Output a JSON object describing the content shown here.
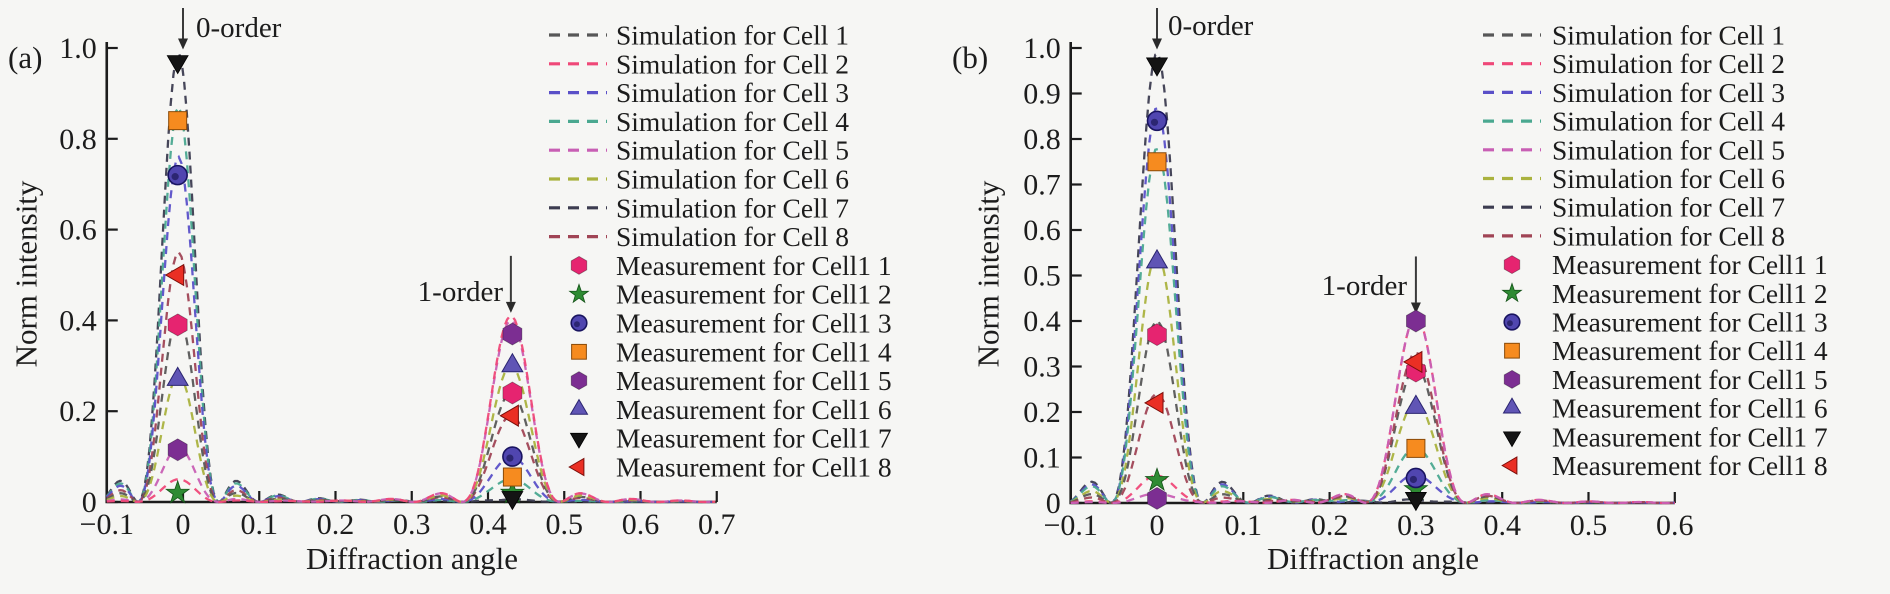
{
  "figure": {
    "background": "#f6f6f4",
    "text_color": "#1c1c1c",
    "axis_color": "#1c1c1c"
  },
  "chart_data": [
    {
      "panel_label": "(a)",
      "type": "line+scatter",
      "title": "",
      "xlabel": "Diffraction angle",
      "ylabel": "Norm intensity",
      "xlim": [
        -0.1,
        0.7
      ],
      "ylim": [
        0,
        1.0
      ],
      "xticks": [
        -0.1,
        0,
        0.1,
        0.2,
        0.3,
        0.4,
        0.5,
        0.6,
        0.7
      ],
      "xtick_labels": [
        "−0.1",
        "0",
        "0.1",
        "0.2",
        "0.3",
        "0.4",
        "0.5",
        "0.6",
        "0.7"
      ],
      "yticks": [
        0,
        0.2,
        0.4,
        0.6,
        0.8,
        1.0
      ],
      "ytick_labels": [
        "0",
        "0.2",
        "0.4",
        "0.6",
        "0.8",
        "1.0"
      ],
      "grid": false,
      "legend_position": "right",
      "zero_order_x": 0.0,
      "first_order_x": 0.43,
      "annotations": [
        {
          "text": "0-order",
          "x": 0.0
        },
        {
          "text": "1-order",
          "x": 0.43
        }
      ],
      "series": [
        {
          "name": "Simulation for Cell 1",
          "type": "line",
          "style": "dashed",
          "color": "#575757",
          "peak0": 0.41,
          "peak1": 0.24
        },
        {
          "name": "Simulation for Cell 2",
          "type": "line",
          "style": "dashed",
          "color": "#ef4878",
          "peak0": 0.05,
          "peak1": 0.41
        },
        {
          "name": "Simulation for Cell 3",
          "type": "line",
          "style": "dashed",
          "color": "#5a50c8",
          "peak0": 0.76,
          "peak1": 0.1
        },
        {
          "name": "Simulation for Cell 4",
          "type": "line",
          "style": "dashed",
          "color": "#4aa890",
          "peak0": 0.87,
          "peak1": 0.05
        },
        {
          "name": "Simulation for Cell 5",
          "type": "line",
          "style": "dashed",
          "color": "#c85fb4",
          "peak0": 0.12,
          "peak1": 0.4
        },
        {
          "name": "Simulation for Cell 6",
          "type": "line",
          "style": "dashed",
          "color": "#aab23e",
          "peak0": 0.28,
          "peak1": 0.3
        },
        {
          "name": "Simulation for Cell 7",
          "type": "line",
          "style": "dashed",
          "color": "#3c3c50",
          "peak0": 0.99,
          "peak1": 0.005
        },
        {
          "name": "Simulation for Cell 8",
          "type": "line",
          "style": "dashed",
          "color": "#a04455",
          "peak0": 0.55,
          "peak1": 0.19
        },
        {
          "name": "Measurement for Cell1 1",
          "type": "scatter",
          "marker": "hexagon",
          "color": "#e62470",
          "peak0": 0.39,
          "peak1": 0.24
        },
        {
          "name": "Measurement for Cell1 2",
          "type": "scatter",
          "marker": "star",
          "color": "#2e8b33",
          "peak0": 0.02,
          "peak1": 0.02
        },
        {
          "name": "Measurement for Cell1 3",
          "type": "scatter",
          "marker": "circle",
          "color": "#5046b0",
          "peak0": 0.72,
          "peak1": 0.1
        },
        {
          "name": "Measurement for Cell1 4",
          "type": "scatter",
          "marker": "square",
          "color": "#f68b1f",
          "peak0": 0.84,
          "peak1": 0.055
        },
        {
          "name": "Measurement for Cell1 5",
          "type": "scatter",
          "marker": "hexagon",
          "color": "#7c2e92",
          "peak0": 0.115,
          "peak1": 0.37
        },
        {
          "name": "Measurement for Cell1 6",
          "type": "scatter",
          "marker": "triangle-up",
          "color": "#6055b5",
          "peak0": 0.27,
          "peak1": 0.3
        },
        {
          "name": "Measurement for Cell1 7",
          "type": "scatter",
          "marker": "triangle-down",
          "color": "#141414",
          "peak0": 0.97,
          "peak1": 0.01
        },
        {
          "name": "Measurement for Cell1 8",
          "type": "scatter",
          "marker": "triangle-left",
          "color": "#ea2f24",
          "peak0": 0.5,
          "peak1": 0.19
        }
      ]
    },
    {
      "panel_label": "(b)",
      "type": "line+scatter",
      "title": "",
      "xlabel": "Diffraction angle",
      "ylabel": "Norm intensity",
      "xlim": [
        -0.1,
        0.6
      ],
      "ylim": [
        0,
        1.0
      ],
      "xticks": [
        -0.1,
        0,
        0.1,
        0.2,
        0.3,
        0.4,
        0.5,
        0.6
      ],
      "xtick_labels": [
        "−0.1",
        "0",
        "0.1",
        "0.2",
        "0.3",
        "0.4",
        "0.5",
        "0.6"
      ],
      "yticks": [
        0,
        0.1,
        0.2,
        0.3,
        0.4,
        0.5,
        0.6,
        0.7,
        0.8,
        0.9,
        1.0
      ],
      "ytick_labels": [
        "0",
        "0.1",
        "0.2",
        "0.3",
        "0.4",
        "0.5",
        "0.6",
        "0.7",
        "0.8",
        "0.9",
        "1.0"
      ],
      "grid": false,
      "legend_position": "right",
      "zero_order_x": 0.0,
      "first_order_x": 0.3,
      "annotations": [
        {
          "text": "0-order",
          "x": 0.0
        },
        {
          "text": "1-order",
          "x": 0.3
        }
      ],
      "series": [
        {
          "name": "Simulation for Cell 1",
          "type": "line",
          "style": "dashed",
          "color": "#575757",
          "peak0": 0.4,
          "peak1": 0.3
        },
        {
          "name": "Simulation for Cell 2",
          "type": "line",
          "style": "dashed",
          "color": "#ef4878",
          "peak0": 0.06,
          "peak1": 0.41
        },
        {
          "name": "Simulation for Cell 3",
          "type": "line",
          "style": "dashed",
          "color": "#5a50c8",
          "peak0": 0.87,
          "peak1": 0.06
        },
        {
          "name": "Simulation for Cell 4",
          "type": "line",
          "style": "dashed",
          "color": "#4aa890",
          "peak0": 0.78,
          "peak1": 0.12
        },
        {
          "name": "Simulation for Cell 5",
          "type": "line",
          "style": "dashed",
          "color": "#c85fb4",
          "peak0": 0.02,
          "peak1": 0.41
        },
        {
          "name": "Simulation for Cell 6",
          "type": "line",
          "style": "dashed",
          "color": "#aab23e",
          "peak0": 0.55,
          "peak1": 0.22
        },
        {
          "name": "Simulation for Cell 7",
          "type": "line",
          "style": "dashed",
          "color": "#3c3c50",
          "peak0": 0.99,
          "peak1": 0.005
        },
        {
          "name": "Simulation for Cell 8",
          "type": "line",
          "style": "dashed",
          "color": "#a04455",
          "peak0": 0.24,
          "peak1": 0.33
        },
        {
          "name": "Measurement for Cell1 1",
          "type": "scatter",
          "marker": "hexagon",
          "color": "#e62470",
          "peak0": 0.37,
          "peak1": 0.29
        },
        {
          "name": "Measurement for Cell1 2",
          "type": "scatter",
          "marker": "star",
          "color": "#2e8b33",
          "peak0": 0.05,
          "peak1": 0.03
        },
        {
          "name": "Measurement for Cell1 3",
          "type": "scatter",
          "marker": "circle",
          "color": "#5046b0",
          "peak0": 0.84,
          "peak1": 0.055
        },
        {
          "name": "Measurement for Cell1 4",
          "type": "scatter",
          "marker": "square",
          "color": "#f68b1f",
          "peak0": 0.75,
          "peak1": 0.12
        },
        {
          "name": "Measurement for Cell1 5",
          "type": "scatter",
          "marker": "hexagon",
          "color": "#7c2e92",
          "peak0": 0.01,
          "peak1": 0.4
        },
        {
          "name": "Measurement for Cell1 6",
          "type": "scatter",
          "marker": "triangle-up",
          "color": "#6055b5",
          "peak0": 0.53,
          "peak1": 0.21
        },
        {
          "name": "Measurement for Cell1 7",
          "type": "scatter",
          "marker": "triangle-down",
          "color": "#141414",
          "peak0": 0.965,
          "peak1": 0.01
        },
        {
          "name": "Measurement for Cell1 8",
          "type": "scatter",
          "marker": "triangle-left",
          "color": "#ea2f24",
          "peak0": 0.22,
          "peak1": 0.31
        }
      ]
    }
  ]
}
